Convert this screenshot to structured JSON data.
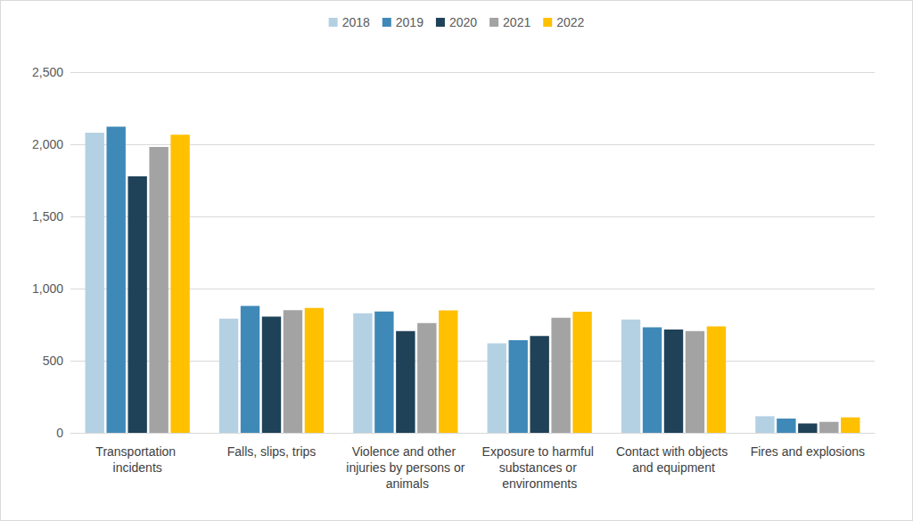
{
  "chart_data": {
    "type": "bar",
    "categories": [
      "Transportation incidents",
      "Falls, slips, trips",
      "Violence and other injuries by persons or animals",
      "Exposure to harmful substances or environments",
      "Contact with objects and equipment",
      "Fires and explosions"
    ],
    "series": [
      {
        "name": "2018",
        "color": "#b4d1e3",
        "values": [
          2080,
          791,
          828,
          621,
          786,
          115
        ]
      },
      {
        "name": "2019",
        "color": "#3f89b8",
        "values": [
          2122,
          880,
          841,
          642,
          732,
          99
        ]
      },
      {
        "name": "2020",
        "color": "#1f4258",
        "values": [
          1778,
          805,
          705,
          672,
          716,
          65
        ]
      },
      {
        "name": "2021",
        "color": "#a3a3a3",
        "values": [
          1982,
          850,
          761,
          798,
          705,
          76
        ]
      },
      {
        "name": "2022",
        "color": "#ffc000",
        "values": [
          2066,
          865,
          849,
          839,
          738,
          107
        ]
      }
    ],
    "ylim": [
      0,
      2500
    ],
    "yticks": [
      0,
      500,
      {
        "value": 1000,
        "label": "1,000"
      },
      {
        "value": 1500,
        "label": "1,500"
      },
      {
        "value": 2000,
        "label": "2,000"
      },
      {
        "value": 2500,
        "label": "2,500"
      }
    ],
    "grid": true,
    "legend": "top"
  }
}
